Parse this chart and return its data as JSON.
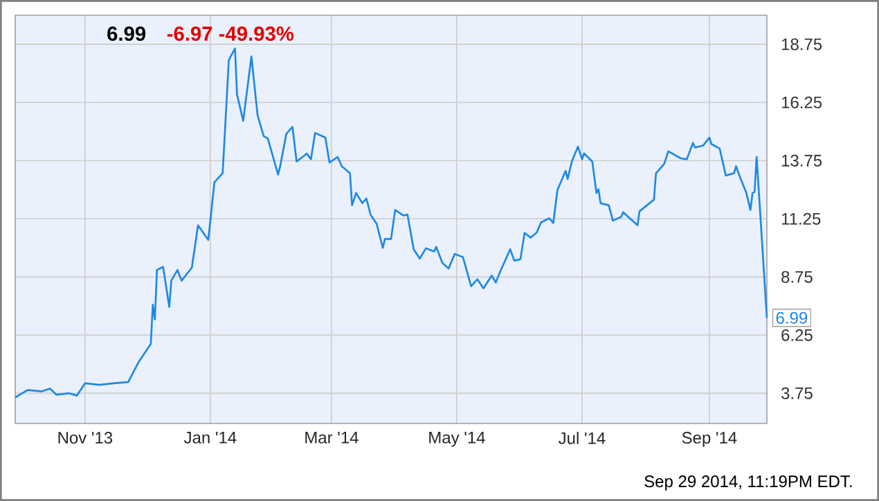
{
  "chart_data": {
    "type": "line",
    "title": "6.99",
    "subtitle": "-6.97  -49.93%",
    "xlim": [
      "2013-09-28",
      "2014-09-29"
    ],
    "xticks": [
      {
        "value": "2013-11-01",
        "label": "Nov '13"
      },
      {
        "value": "2014-01-01",
        "label": "Jan '14"
      },
      {
        "value": "2014-03-01",
        "label": "Mar '14"
      },
      {
        "value": "2014-05-01",
        "label": "May '14"
      },
      {
        "value": "2014-07-01",
        "label": "Jul '14"
      },
      {
        "value": "2014-09-01",
        "label": "Sep '14"
      }
    ],
    "ylim": [
      2.45,
      20.0
    ],
    "yticks": [
      3.75,
      6.25,
      8.75,
      11.25,
      13.75,
      16.25,
      18.75
    ],
    "grid": true,
    "series": [
      {
        "color": "#1e88e5",
        "x": [
          "2013-09-28",
          "2013-10-04",
          "2013-10-11",
          "2013-10-15",
          "2013-10-18",
          "2013-10-24",
          "2013-10-28",
          "2013-11-01",
          "2013-11-08",
          "2013-11-15",
          "2013-11-22",
          "2013-11-27",
          "2013-12-03",
          "2013-12-04",
          "2013-12-05",
          "2013-12-06",
          "2013-12-09",
          "2013-12-12",
          "2013-12-13",
          "2013-12-16",
          "2013-12-18",
          "2013-12-23",
          "2013-12-26",
          "2013-12-31",
          "2014-01-03",
          "2014-01-07",
          "2014-01-10",
          "2014-01-13",
          "2014-01-14",
          "2014-01-17",
          "2014-01-21",
          "2014-01-24",
          "2014-01-27",
          "2014-01-29",
          "2014-02-03",
          "2014-02-04",
          "2014-02-07",
          "2014-02-10",
          "2014-02-12",
          "2014-02-17",
          "2014-02-19",
          "2014-02-21",
          "2014-02-26",
          "2014-02-28",
          "2014-03-04",
          "2014-03-06",
          "2014-03-10",
          "2014-03-11",
          "2014-03-13",
          "2014-03-16",
          "2014-03-18",
          "2014-03-20",
          "2014-03-23",
          "2014-03-25",
          "2014-03-26",
          "2014-03-27",
          "2014-03-30",
          "2014-04-01",
          "2014-04-05",
          "2014-04-07",
          "2014-04-10",
          "2014-04-13",
          "2014-04-16",
          "2014-04-20",
          "2014-04-21",
          "2014-04-24",
          "2014-04-27",
          "2014-04-30",
          "2014-05-04",
          "2014-05-08",
          "2014-05-11",
          "2014-05-14",
          "2014-05-18",
          "2014-05-20",
          "2014-05-22",
          "2014-05-27",
          "2014-05-29",
          "2014-06-01",
          "2014-06-03",
          "2014-06-06",
          "2014-06-09",
          "2014-06-11",
          "2014-06-15",
          "2014-06-17",
          "2014-06-19",
          "2014-06-23",
          "2014-06-24",
          "2014-06-26",
          "2014-06-29",
          "2014-07-01",
          "2014-07-02",
          "2014-07-06",
          "2014-07-08",
          "2014-07-09",
          "2014-07-10",
          "2014-07-14",
          "2014-07-16",
          "2014-07-20",
          "2014-07-21",
          "2014-07-24",
          "2014-07-28",
          "2014-07-29",
          "2014-08-05",
          "2014-08-06",
          "2014-08-10",
          "2014-08-12",
          "2014-08-18",
          "2014-08-21",
          "2014-08-24",
          "2014-08-25",
          "2014-08-29",
          "2014-09-01",
          "2014-09-02",
          "2014-09-06",
          "2014-09-09",
          "2014-09-13",
          "2014-09-14",
          "2014-09-16",
          "2014-09-19",
          "2014-09-21",
          "2014-09-22",
          "2014-09-23",
          "2014-09-24",
          "2014-09-29"
        ],
        "values": [
          3.57,
          3.89,
          3.83,
          3.95,
          3.69,
          3.75,
          3.65,
          4.18,
          4.11,
          4.18,
          4.23,
          5.08,
          5.87,
          7.56,
          6.92,
          9.05,
          9.18,
          7.46,
          8.59,
          9.05,
          8.59,
          9.15,
          10.97,
          10.34,
          12.82,
          13.21,
          18.08,
          18.57,
          16.59,
          15.46,
          18.23,
          15.7,
          14.8,
          14.7,
          13.15,
          13.51,
          14.9,
          15.2,
          13.71,
          14.05,
          13.81,
          14.94,
          14.74,
          13.67,
          13.91,
          13.51,
          13.21,
          11.83,
          12.36,
          11.92,
          12.12,
          11.43,
          11.03,
          10.34,
          10.0,
          10.38,
          10.38,
          11.63,
          11.39,
          11.43,
          9.94,
          9.54,
          9.98,
          9.84,
          10.04,
          9.35,
          9.11,
          9.74,
          9.6,
          8.35,
          8.65,
          8.26,
          8.81,
          8.51,
          8.95,
          9.94,
          9.45,
          9.51,
          10.64,
          10.44,
          10.67,
          11.09,
          11.27,
          11.07,
          12.48,
          13.31,
          12.96,
          13.71,
          14.35,
          13.81,
          14.06,
          13.71,
          12.36,
          12.52,
          11.92,
          11.83,
          11.17,
          11.33,
          11.53,
          11.29,
          10.97,
          11.57,
          12.07,
          13.21,
          13.61,
          14.15,
          13.85,
          13.81,
          14.51,
          14.31,
          14.4,
          14.74,
          14.46,
          14.27,
          13.11,
          13.21,
          13.51,
          13.02,
          12.36,
          11.63,
          12.36,
          12.4,
          13.91,
          6.99
        ]
      }
    ],
    "annotations": [
      {
        "text": "6.99",
        "x": "2014-09-29",
        "y": 6.99
      },
      "Sep 29 2014, 11:19PM EDT."
    ]
  }
}
